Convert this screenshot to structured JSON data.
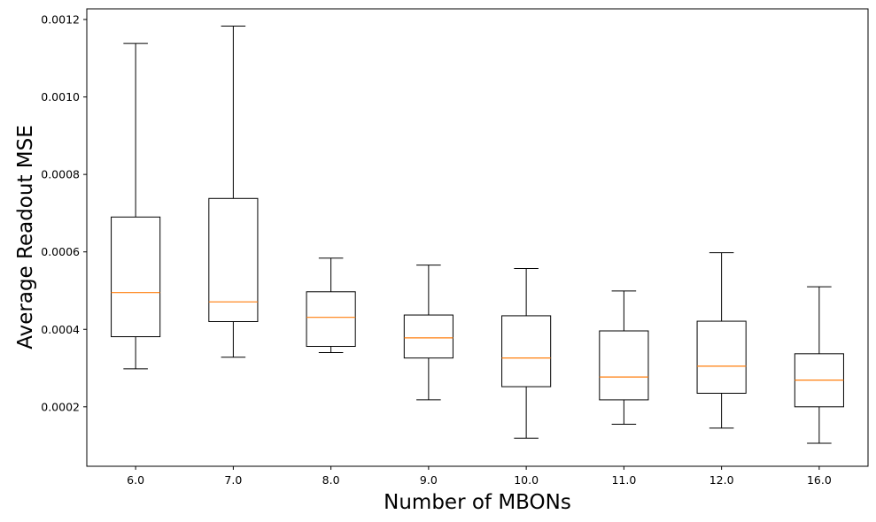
{
  "chart_data": {
    "type": "box",
    "xlabel": "Number of MBONs",
    "ylabel": "Average Readout MSE",
    "categories": [
      "6.0",
      "7.0",
      "8.0",
      "9.0",
      "10.0",
      "11.0",
      "12.0",
      "16.0"
    ],
    "boxes": [
      {
        "whisker_low": 0.000298,
        "q1": 0.000381,
        "median": 0.000495,
        "q3": 0.00069,
        "whisker_high": 0.001138
      },
      {
        "whisker_low": 0.000328,
        "q1": 0.00042,
        "median": 0.000471,
        "q3": 0.000738,
        "whisker_high": 0.001183
      },
      {
        "whisker_low": 0.00034,
        "q1": 0.000356,
        "median": 0.000431,
        "q3": 0.000497,
        "whisker_high": 0.000584
      },
      {
        "whisker_low": 0.000218,
        "q1": 0.000326,
        "median": 0.000378,
        "q3": 0.000437,
        "whisker_high": 0.000566
      },
      {
        "whisker_low": 0.000119,
        "q1": 0.000252,
        "median": 0.000326,
        "q3": 0.000435,
        "whisker_high": 0.000557
      },
      {
        "whisker_low": 0.000155,
        "q1": 0.000218,
        "median": 0.000277,
        "q3": 0.000396,
        "whisker_high": 0.000499
      },
      {
        "whisker_low": 0.000145,
        "q1": 0.000235,
        "median": 0.000305,
        "q3": 0.000421,
        "whisker_high": 0.000598
      },
      {
        "whisker_low": 0.000106,
        "q1": 0.0002,
        "median": 0.000269,
        "q3": 0.000337,
        "whisker_high": 0.00051
      }
    ],
    "yticks": [
      "0.0002",
      "0.0004",
      "0.0006",
      "0.0008",
      "0.0010",
      "0.0012"
    ],
    "ytick_values": [
      0.0002,
      0.0004,
      0.0006,
      0.0008,
      0.001,
      0.0012
    ],
    "ylim": [
      4.65e-05,
      0.0012275
    ],
    "grid": false,
    "colors": {
      "box": "#000000",
      "median": "#ff7f0e"
    }
  }
}
